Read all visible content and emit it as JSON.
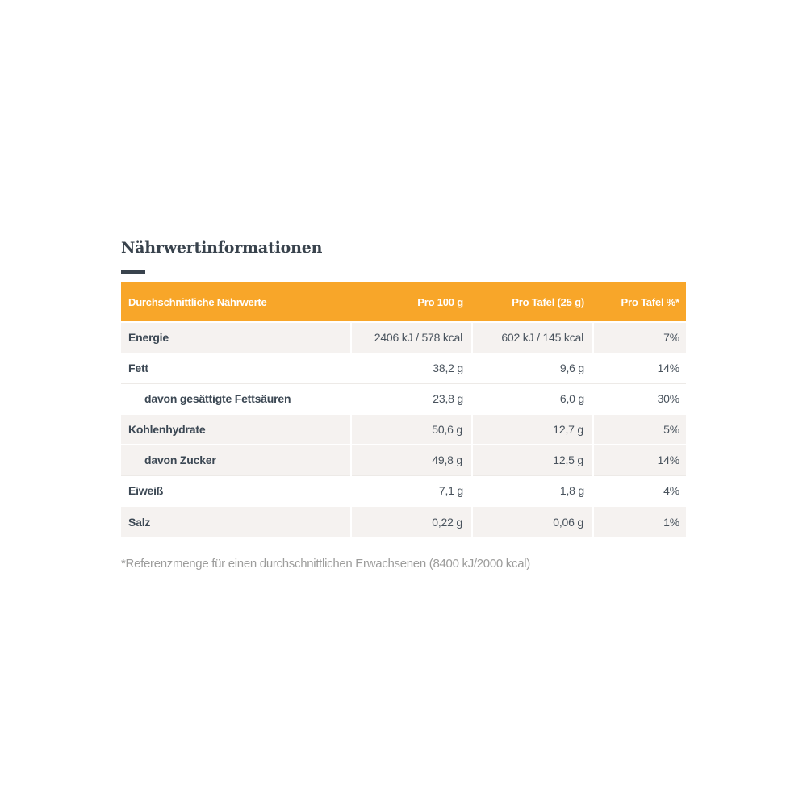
{
  "page": {
    "title": "Nährwertinformationen",
    "footnote": "*Referenzmenge für einen durchschnittlichen Erwachsenen (8400 kJ/2000 kcal)"
  },
  "table": {
    "columns": [
      "Durchschnittliche Nährwerte",
      "Pro 100 g",
      "Pro Tafel (25 g)",
      "Pro Tafel %*"
    ],
    "rows": [
      {
        "label": "Energie",
        "per_100g": "2406 kJ / 578 kcal",
        "per_tafel": "602 kJ / 145 kcal",
        "percent": "7%",
        "indent": false,
        "shaded": true
      },
      {
        "label": "Fett",
        "per_100g": "38,2 g",
        "per_tafel": "9,6 g",
        "percent": "14%",
        "indent": false,
        "shaded": false
      },
      {
        "label": "davon gesättigte Fettsäuren",
        "per_100g": "23,8 g",
        "per_tafel": "6,0 g",
        "percent": "30%",
        "indent": true,
        "shaded": false
      },
      {
        "label": "Kohlenhydrate",
        "per_100g": "50,6 g",
        "per_tafel": "12,7 g",
        "percent": "5%",
        "indent": false,
        "shaded": true
      },
      {
        "label": "davon Zucker",
        "per_100g": "49,8 g",
        "per_tafel": "12,5 g",
        "percent": "14%",
        "indent": true,
        "shaded": true
      },
      {
        "label": "Eiweiß",
        "per_100g": "7,1 g",
        "per_tafel": "1,8 g",
        "percent": "4%",
        "indent": false,
        "shaded": false
      },
      {
        "label": "Salz",
        "per_100g": "0,22 g",
        "per_tafel": "0,06 g",
        "percent": "1%",
        "indent": false,
        "shaded": true
      }
    ]
  },
  "colors": {
    "header_bg": "#f8a629",
    "stripe_bg": "#f5f2f0",
    "text_dark": "#3c4854",
    "title_color": "#39434d",
    "footnote_color": "#9c9c9b"
  }
}
